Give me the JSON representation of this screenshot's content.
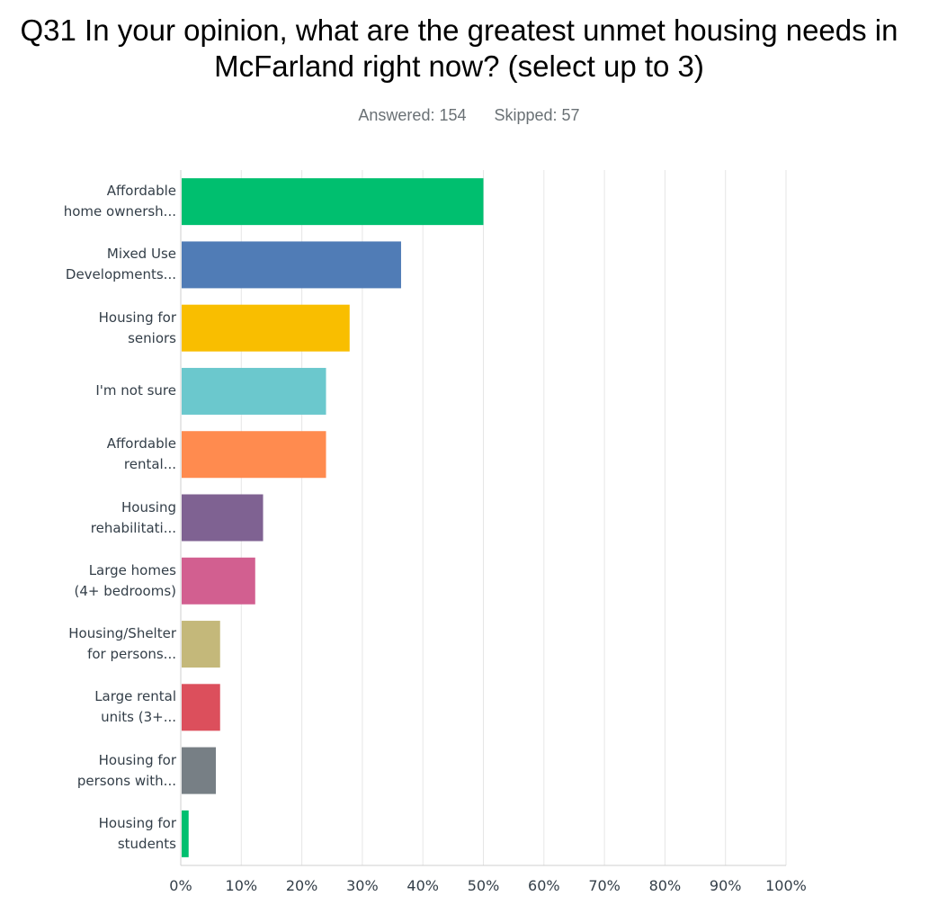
{
  "title_line1": "Q31 In your opinion, what are the greatest unmet housing needs in",
  "title_line2": "McFarland right now? (select up to 3)",
  "answered": "Answered: 154",
  "skipped": "Skipped: 57",
  "chart_data": {
    "type": "bar",
    "orientation": "horizontal",
    "title": "Q31 In your opinion, what are the greatest unmet housing needs in McFarland right now? (select up to 3)",
    "categories": [
      [
        "Affordable",
        "home ownersh..."
      ],
      [
        "Mixed Use",
        "Developments..."
      ],
      [
        "Housing for",
        "seniors"
      ],
      [
        "I'm not sure"
      ],
      [
        "Affordable",
        "rental..."
      ],
      [
        "Housing",
        "rehabilitati..."
      ],
      [
        "Large homes",
        "(4+ bedrooms)"
      ],
      [
        "Housing/Shelter",
        "for persons..."
      ],
      [
        "Large rental",
        "units (3+..."
      ],
      [
        "Housing for",
        "persons with..."
      ],
      [
        "Housing for",
        "students"
      ]
    ],
    "values": [
      50.0,
      36.4,
      27.9,
      24.0,
      24.0,
      13.6,
      12.3,
      6.5,
      6.5,
      5.8,
      1.3
    ],
    "colors": [
      "#00bf6f",
      "#507cb6",
      "#f9be00",
      "#6bc8cd",
      "#ff8b4f",
      "#7f6292",
      "#d25f90",
      "#c4b87a",
      "#dc4f5c",
      "#777f85",
      "#00bf6f"
    ],
    "xlim": [
      0,
      100
    ],
    "ticks": [
      "0%",
      "10%",
      "20%",
      "30%",
      "40%",
      "50%",
      "60%",
      "70%",
      "80%",
      "90%",
      "100%"
    ],
    "grid": true,
    "xlabel": "",
    "ylabel": ""
  }
}
